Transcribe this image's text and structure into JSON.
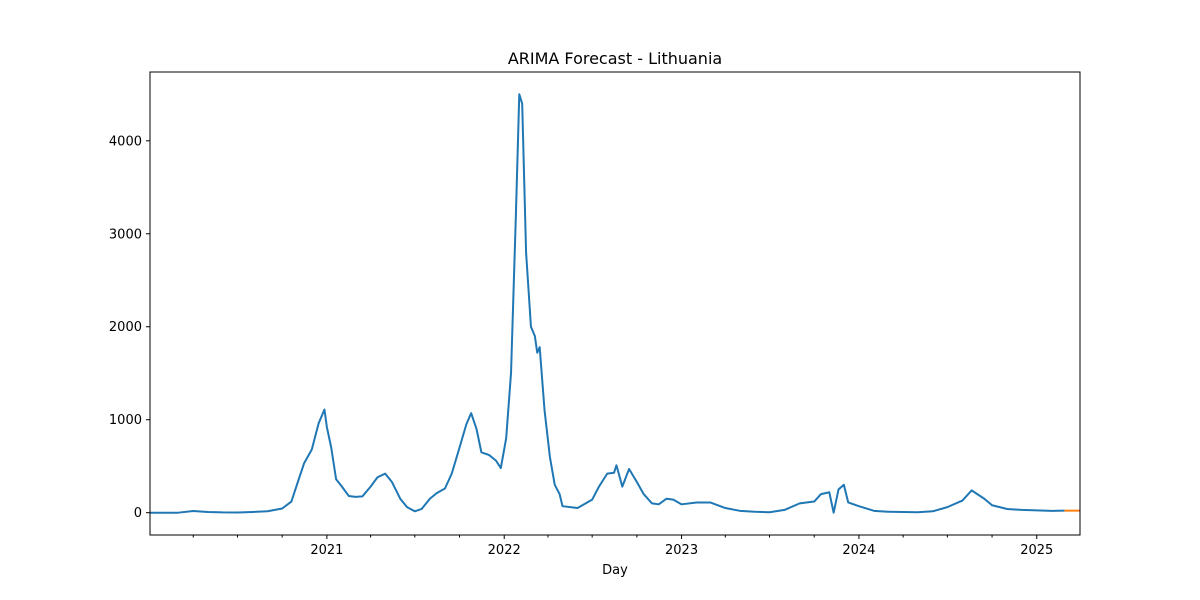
{
  "chart_data": {
    "type": "line",
    "title": "ARIMA Forecast - Lithuania",
    "xlabel": "Day",
    "ylabel": "",
    "xlim": [
      "2020-01-03",
      "2025-03-31"
    ],
    "ylim": [
      -240,
      4740
    ],
    "x_ticks": [
      {
        "date": "2021-01-01",
        "label": "2021"
      },
      {
        "date": "2022-01-01",
        "label": "2022"
      },
      {
        "date": "2023-01-01",
        "label": "2023"
      },
      {
        "date": "2024-01-01",
        "label": "2024"
      },
      {
        "date": "2025-01-01",
        "label": "2025"
      }
    ],
    "y_ticks": [
      0,
      1000,
      2000,
      3000,
      4000
    ],
    "grid": false,
    "series": [
      {
        "color": "#1f77b4",
        "points": [
          [
            "2020-01-03",
            0
          ],
          [
            "2020-03-01",
            0
          ],
          [
            "2020-04-01",
            18
          ],
          [
            "2020-05-01",
            8
          ],
          [
            "2020-06-01",
            3
          ],
          [
            "2020-07-01",
            2
          ],
          [
            "2020-08-01",
            8
          ],
          [
            "2020-09-01",
            15
          ],
          [
            "2020-10-01",
            45
          ],
          [
            "2020-10-20",
            120
          ],
          [
            "2020-11-01",
            310
          ],
          [
            "2020-11-15",
            530
          ],
          [
            "2020-12-01",
            680
          ],
          [
            "2020-12-15",
            960
          ],
          [
            "2020-12-27",
            1110
          ],
          [
            "2021-01-01",
            920
          ],
          [
            "2021-01-10",
            700
          ],
          [
            "2021-01-20",
            360
          ],
          [
            "2021-02-01",
            280
          ],
          [
            "2021-02-15",
            180
          ],
          [
            "2021-03-01",
            170
          ],
          [
            "2021-03-15",
            175
          ],
          [
            "2021-04-01",
            280
          ],
          [
            "2021-04-15",
            380
          ],
          [
            "2021-05-01",
            420
          ],
          [
            "2021-05-15",
            330
          ],
          [
            "2021-06-01",
            150
          ],
          [
            "2021-06-15",
            60
          ],
          [
            "2021-07-01",
            15
          ],
          [
            "2021-07-15",
            40
          ],
          [
            "2021-08-01",
            150
          ],
          [
            "2021-08-15",
            210
          ],
          [
            "2021-09-01",
            260
          ],
          [
            "2021-09-15",
            420
          ],
          [
            "2021-10-01",
            700
          ],
          [
            "2021-10-15",
            950
          ],
          [
            "2021-10-25",
            1070
          ],
          [
            "2021-11-05",
            900
          ],
          [
            "2021-11-15",
            650
          ],
          [
            "2021-12-01",
            620
          ],
          [
            "2021-12-15",
            560
          ],
          [
            "2021-12-25",
            480
          ],
          [
            "2022-01-05",
            800
          ],
          [
            "2022-01-15",
            1500
          ],
          [
            "2022-01-25",
            3200
          ],
          [
            "2022-02-01",
            4500
          ],
          [
            "2022-02-07",
            4400
          ],
          [
            "2022-02-15",
            2800
          ],
          [
            "2022-02-25",
            2000
          ],
          [
            "2022-03-05",
            1900
          ],
          [
            "2022-03-10",
            1720
          ],
          [
            "2022-03-15",
            1780
          ],
          [
            "2022-03-25",
            1100
          ],
          [
            "2022-04-05",
            600
          ],
          [
            "2022-04-15",
            300
          ],
          [
            "2022-04-25",
            200
          ],
          [
            "2022-05-01",
            70
          ],
          [
            "2022-06-01",
            50
          ],
          [
            "2022-07-01",
            140
          ],
          [
            "2022-07-15",
            280
          ],
          [
            "2022-08-01",
            420
          ],
          [
            "2022-08-15",
            430
          ],
          [
            "2022-08-20",
            510
          ],
          [
            "2022-09-01",
            280
          ],
          [
            "2022-09-15",
            470
          ],
          [
            "2022-10-01",
            330
          ],
          [
            "2022-10-15",
            200
          ],
          [
            "2022-11-01",
            100
          ],
          [
            "2022-11-15",
            90
          ],
          [
            "2022-12-01",
            150
          ],
          [
            "2022-12-15",
            140
          ],
          [
            "2023-01-01",
            90
          ],
          [
            "2023-02-01",
            110
          ],
          [
            "2023-03-01",
            110
          ],
          [
            "2023-04-01",
            50
          ],
          [
            "2023-05-01",
            20
          ],
          [
            "2023-06-01",
            10
          ],
          [
            "2023-07-01",
            5
          ],
          [
            "2023-08-01",
            30
          ],
          [
            "2023-09-01",
            100
          ],
          [
            "2023-10-01",
            120
          ],
          [
            "2023-10-15",
            200
          ],
          [
            "2023-11-01",
            220
          ],
          [
            "2023-11-10",
            0
          ],
          [
            "2023-11-20",
            250
          ],
          [
            "2023-12-01",
            300
          ],
          [
            "2023-12-10",
            110
          ],
          [
            "2024-01-01",
            70
          ],
          [
            "2024-02-01",
            20
          ],
          [
            "2024-03-01",
            10
          ],
          [
            "2024-04-01",
            8
          ],
          [
            "2024-05-01",
            5
          ],
          [
            "2024-06-01",
            15
          ],
          [
            "2024-07-01",
            60
          ],
          [
            "2024-08-01",
            130
          ],
          [
            "2024-08-20",
            240
          ],
          [
            "2024-09-15",
            150
          ],
          [
            "2024-10-01",
            80
          ],
          [
            "2024-11-01",
            40
          ],
          [
            "2024-12-01",
            30
          ],
          [
            "2025-01-01",
            25
          ],
          [
            "2025-02-01",
            20
          ],
          [
            "2025-02-27",
            22
          ]
        ]
      },
      {
        "color": "#ff7f0e",
        "points": [
          [
            "2025-02-27",
            22
          ],
          [
            "2025-03-31",
            22
          ]
        ]
      }
    ]
  }
}
